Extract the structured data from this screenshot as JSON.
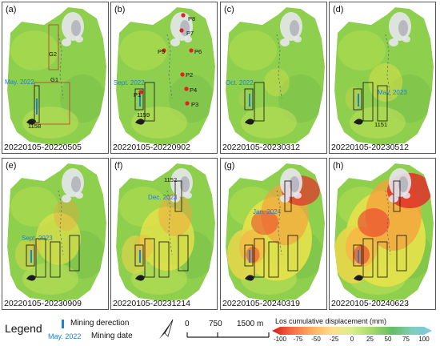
{
  "panels": [
    {
      "label": "(a)",
      "range": "20220105-20220505",
      "mining_date": "May. 2022",
      "annotations": [
        "G2",
        "G1",
        "1158"
      ],
      "points": []
    },
    {
      "label": "(b)",
      "range": "20220105-20220902",
      "mining_date": "Sept. 2022",
      "annotations": [
        "1159"
      ],
      "points": [
        "P8",
        "P7",
        "P5",
        "P6",
        "P2",
        "P1",
        "P4",
        "P3"
      ]
    },
    {
      "label": "(c)",
      "range": "20220105-20230312",
      "mining_date": "Oct. 2022",
      "annotations": [],
      "points": []
    },
    {
      "label": "(d)",
      "range": "20220105-20230512",
      "mining_date": "May. 2023",
      "annotations": [
        "1151"
      ],
      "points": []
    },
    {
      "label": "(e)",
      "range": "20220105-20230909",
      "mining_date": "Sept. 2023",
      "annotations": [],
      "points": []
    },
    {
      "label": "(f)",
      "range": "20220105-20231214",
      "mining_date": "Dec. 2023",
      "annotations": [
        "1152"
      ],
      "points": []
    },
    {
      "label": "(g)",
      "range": "20220105-20240319",
      "mining_date": "Jan. 2024",
      "annotations": [],
      "points": []
    },
    {
      "label": "(h)",
      "range": "20220105-20240623",
      "mining_date": "",
      "annotations": [],
      "points": []
    }
  ],
  "deformation_level": [
    0.05,
    0.1,
    0.15,
    0.28,
    0.45,
    0.6,
    0.85,
    1.0
  ],
  "legend": {
    "title": "Legend",
    "mining_direction": "Mining derection",
    "date_sample": "May. 2022",
    "mining_date": "Mining date"
  },
  "scale": {
    "labels": [
      "0",
      "750",
      "1500 m"
    ]
  },
  "colorbar": {
    "title": "Los cumulative displacement (mm)",
    "ticks": [
      "-100",
      "-75",
      "-50",
      "-25",
      "0",
      "25",
      "50",
      "75",
      "100"
    ],
    "colors": [
      "#d7191c",
      "#f46d43",
      "#fdae61",
      "#fee08b",
      "#d9ef8b",
      "#a6d96a",
      "#66bd63",
      "#7fcdbb",
      "#7ec8e3"
    ]
  }
}
